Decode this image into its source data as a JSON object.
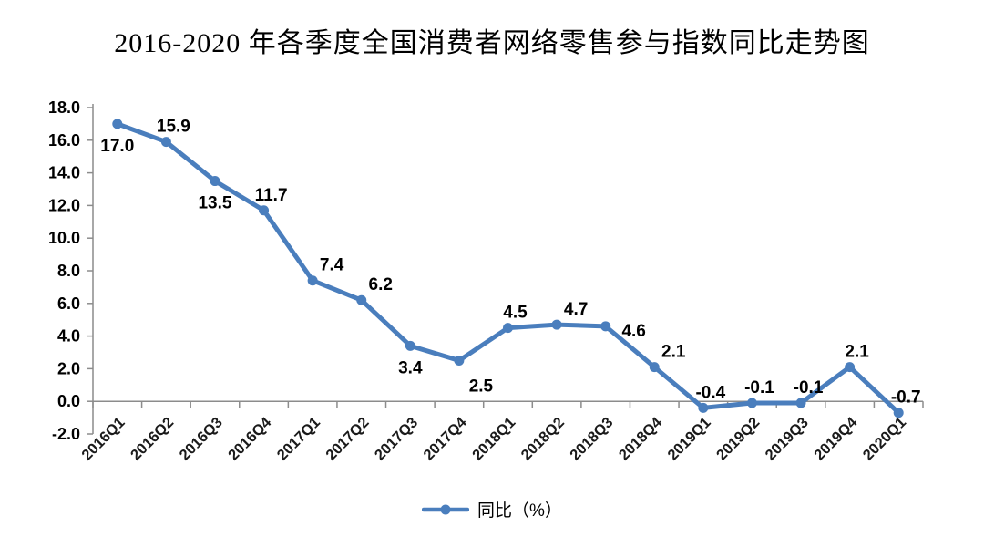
{
  "title": "2016-2020 年各季度全国消费者网络零售参与指数同比走势图",
  "chart_data": {
    "type": "line",
    "title": "2016-2020 年各季度全国消费者网络零售参与指数同比走势图",
    "categories": [
      "2016Q1",
      "2016Q2",
      "2016Q3",
      "2016Q4",
      "2017Q1",
      "2017Q2",
      "2017Q3",
      "2017Q4",
      "2018Q1",
      "2018Q2",
      "2018Q3",
      "2018Q4",
      "2019Q1",
      "2019Q2",
      "2019Q3",
      "2019Q4",
      "2020Q1"
    ],
    "values": [
      17.0,
      15.9,
      13.5,
      11.7,
      7.4,
      6.2,
      3.4,
      2.5,
      4.5,
      4.7,
      4.6,
      2.1,
      -0.4,
      -0.1,
      -0.1,
      2.1,
      -0.7
    ],
    "legend": "同比（%）",
    "xlabel": "",
    "ylabel": "",
    "ylim": [
      -2.0,
      18.0
    ],
    "ytick_step": 2.0,
    "ytick_format_decimals": 1,
    "grid": false,
    "legend_position": "bottom-center",
    "x_label_rotation": -45,
    "line_color": "#4A7EBD",
    "marker_color": "#4A7EBD",
    "axis_color": "#8c8c8c",
    "label_color": "#000000",
    "label_positions": [
      "below",
      "above",
      "below",
      "above",
      "above-right",
      "above-right",
      "below",
      "below-right",
      "above",
      "above-right",
      "right-below",
      "above-right",
      "above",
      "above",
      "above",
      "above",
      "above"
    ]
  }
}
